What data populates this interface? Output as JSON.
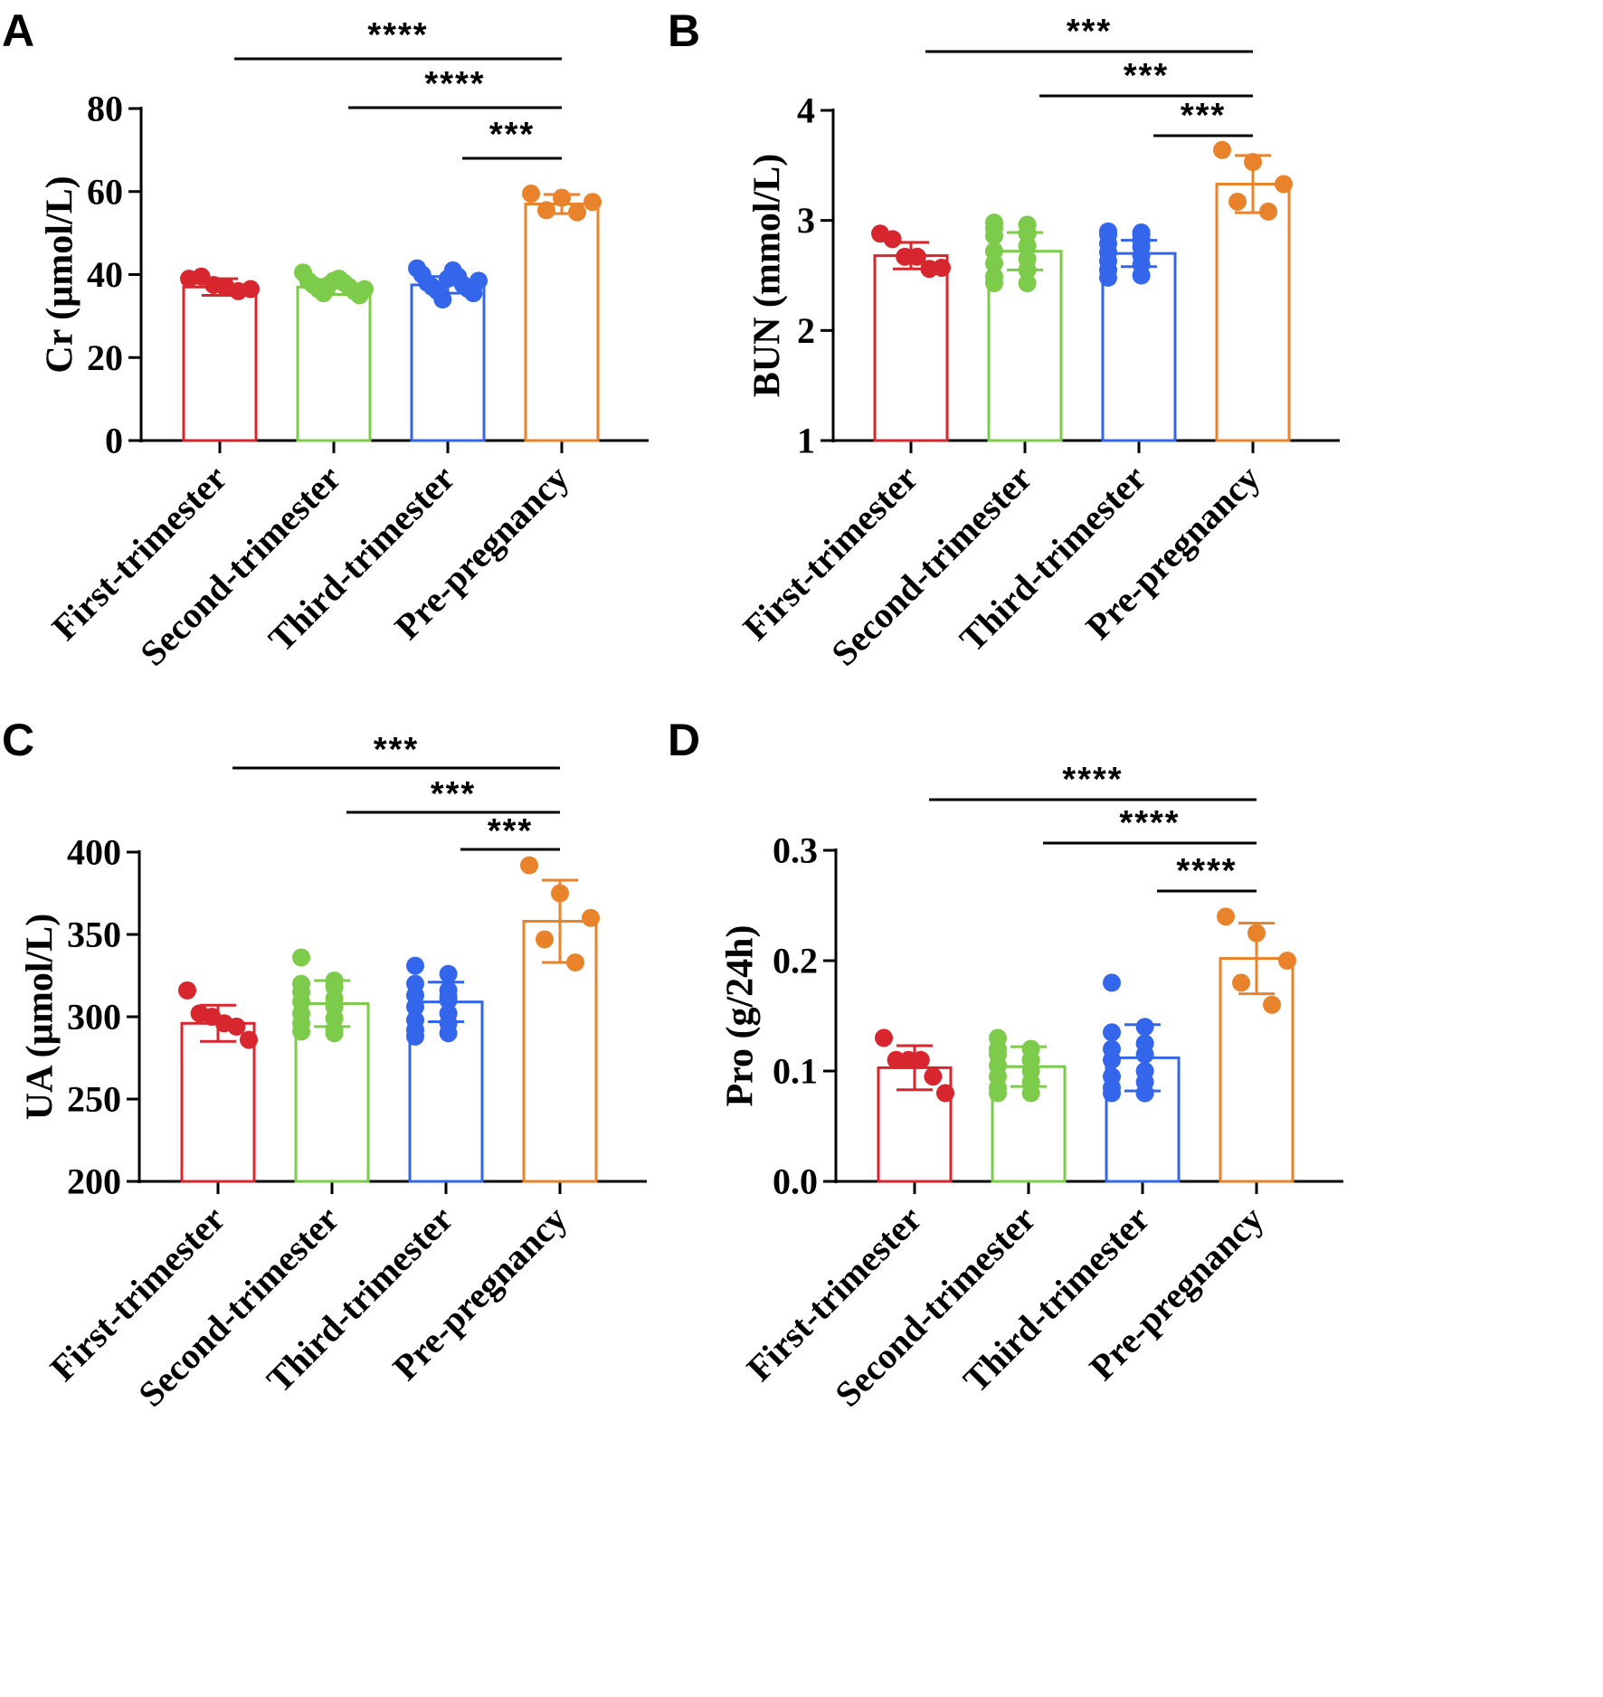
{
  "colors": {
    "First-trimester": "#d7262d",
    "Second-trimester": "#7dcb4a",
    "Third-trimester": "#3466ec",
    "Pre-pregnancy": "#e9832b",
    "axis": "#000000"
  },
  "chart_data": [
    {
      "panel": "A",
      "type": "bar",
      "ylabel": "Cr (µmol/L)",
      "ylim": [
        0,
        80
      ],
      "yticks": [
        "0",
        "20",
        "40",
        "60",
        "80"
      ],
      "categories": [
        "First-trimester",
        "Second-trimester",
        "Third-trimester",
        "Pre-pregnancy"
      ],
      "values": [
        37,
        37,
        37.5,
        57
      ],
      "sd": [
        2,
        1.8,
        2,
        2.3
      ],
      "points": [
        [
          39,
          39.5,
          37.5,
          37,
          36,
          36.5
        ],
        [
          40.5,
          39,
          38.5,
          38,
          37.5,
          37,
          36.5,
          36,
          35.5,
          35,
          37.5,
          36.5,
          38.5
        ],
        [
          41.5,
          41,
          40,
          39.5,
          38,
          37.5,
          37,
          36.5,
          36,
          35.5,
          34,
          38.5,
          39
        ],
        [
          59.5,
          58.5,
          57.5,
          55.5,
          55
        ]
      ],
      "significance": [
        {
          "from": 0,
          "to": 3,
          "label": "****"
        },
        {
          "from": 1,
          "to": 3,
          "label": "****"
        },
        {
          "from": 2,
          "to": 3,
          "label": "***"
        }
      ]
    },
    {
      "panel": "B",
      "type": "bar",
      "ylabel": "BUN (mmol/L)",
      "ylim": [
        1,
        4
      ],
      "yticks": [
        "1",
        "2",
        "3",
        "4"
      ],
      "categories": [
        "First-trimester",
        "Second-trimester",
        "Third-trimester",
        "Pre-pregnancy"
      ],
      "values": [
        2.68,
        2.72,
        2.7,
        3.33
      ],
      "sd": [
        0.12,
        0.17,
        0.12,
        0.26
      ],
      "points": [
        [
          2.88,
          2.83,
          2.67,
          2.67,
          2.56,
          2.57
        ],
        [
          2.98,
          2.96,
          2.93,
          2.88,
          2.86,
          2.77,
          2.72,
          2.65,
          2.61,
          2.55,
          2.49,
          2.43,
          2.43,
          2.96
        ],
        [
          2.9,
          2.89,
          2.87,
          2.82,
          2.79,
          2.76,
          2.71,
          2.68,
          2.63,
          2.6,
          2.55,
          2.5,
          2.48,
          2.87
        ],
        [
          3.64,
          3.53,
          3.33,
          3.17,
          3.08
        ]
      ],
      "significance": [
        {
          "from": 0,
          "to": 3,
          "label": "***"
        },
        {
          "from": 1,
          "to": 3,
          "label": "***"
        },
        {
          "from": 2,
          "to": 3,
          "label": "***"
        }
      ]
    },
    {
      "panel": "C",
      "type": "bar",
      "ylabel": "UA (µmol/L)",
      "ylim": [
        200,
        400
      ],
      "yticks": [
        "200",
        "250",
        "300",
        "350",
        "400"
      ],
      "categories": [
        "First-trimester",
        "Second-trimester",
        "Third-trimester",
        "Pre-pregnancy"
      ],
      "values": [
        296,
        308,
        309,
        358
      ],
      "sd": [
        11,
        14,
        12,
        25
      ],
      "points": [
        [
          316,
          302,
          300,
          296,
          294,
          286
        ],
        [
          336,
          322,
          320,
          318,
          315,
          311,
          309,
          306,
          302,
          299,
          296,
          292,
          291,
          290
        ],
        [
          331,
          326,
          320,
          316,
          313,
          310,
          306,
          302,
          298,
          296,
          292,
          290,
          288,
          312
        ],
        [
          392,
          375,
          360,
          347,
          333
        ]
      ],
      "significance": [
        {
          "from": 0,
          "to": 3,
          "label": "***"
        },
        {
          "from": 1,
          "to": 3,
          "label": "***"
        },
        {
          "from": 2,
          "to": 3,
          "label": "***"
        }
      ]
    },
    {
      "panel": "D",
      "type": "bar",
      "ylabel": "Pro (g/24h)",
      "ylim": [
        0,
        0.3
      ],
      "yticks": [
        "0.0",
        "0.1",
        "0.2",
        "0.3"
      ],
      "categories": [
        "First-trimester",
        "Second-trimester",
        "Third-trimester",
        "Pre-pregnancy"
      ],
      "values": [
        0.103,
        0.104,
        0.112,
        0.202
      ],
      "sd": [
        0.02,
        0.018,
        0.03,
        0.032
      ],
      "points": [
        [
          0.13,
          0.11,
          0.11,
          0.11,
          0.095,
          0.08
        ],
        [
          0.13,
          0.12,
          0.12,
          0.12,
          0.115,
          0.11,
          0.105,
          0.1,
          0.095,
          0.09,
          0.085,
          0.08,
          0.08,
          0.11
        ],
        [
          0.18,
          0.14,
          0.135,
          0.125,
          0.12,
          0.115,
          0.11,
          0.1,
          0.095,
          0.09,
          0.085,
          0.08,
          0.08,
          0.08
        ],
        [
          0.24,
          0.225,
          0.2,
          0.18,
          0.16
        ]
      ],
      "significance": [
        {
          "from": 0,
          "to": 3,
          "label": "****"
        },
        {
          "from": 1,
          "to": 3,
          "label": "****"
        },
        {
          "from": 2,
          "to": 3,
          "label": "****"
        }
      ]
    }
  ]
}
